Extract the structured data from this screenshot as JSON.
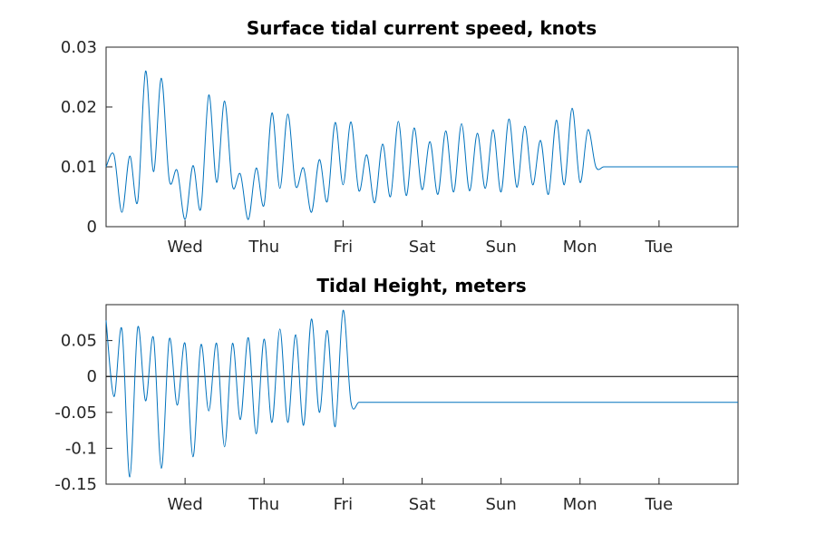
{
  "chart_data": [
    {
      "type": "line",
      "title": "Surface tidal current speed, knots",
      "xlabel": "",
      "ylabel": "",
      "x_unit": "days",
      "xlim": [
        0,
        8
      ],
      "ylim": [
        0,
        0.03
      ],
      "yticks": [
        0,
        0.01,
        0.02,
        0.03
      ],
      "ytick_labels": [
        "0",
        "0.01",
        "0.02",
        "0.03"
      ],
      "xticks": [
        1,
        2,
        3,
        4,
        5,
        6,
        7
      ],
      "xtick_labels": [
        "Wed",
        "Thu",
        "Fri",
        "Sat",
        "Sun",
        "Mon",
        "Tue"
      ],
      "zero_line": false,
      "grid": false,
      "series": [
        {
          "name": "",
          "color": "#0072bd",
          "x": [
            0,
            0.1,
            0.2,
            0.3,
            0.4,
            0.5,
            0.6,
            0.7,
            0.8,
            0.9,
            1.0,
            1.1,
            1.2,
            1.3,
            1.4,
            1.5,
            1.6,
            1.7,
            1.8,
            1.9,
            2.0,
            2.1,
            2.2,
            2.3,
            2.4,
            2.5,
            2.6,
            2.7,
            2.8,
            2.9,
            3.0,
            3.1,
            3.2,
            3.3,
            3.4,
            3.5,
            3.6,
            3.7,
            3.8,
            3.9,
            4.0,
            4.1,
            4.2,
            4.3,
            4.4,
            4.5,
            4.6,
            4.7,
            4.8,
            4.9,
            5.0,
            5.1,
            5.2,
            5.3,
            5.4,
            5.5,
            5.6,
            5.7,
            5.8,
            5.9,
            6.0,
            6.1,
            6.2,
            6.3,
            6.4,
            6.5,
            6.6,
            6.7,
            6.8,
            6.9,
            7.0,
            7.1,
            7.2,
            7.3,
            7.4,
            7.5,
            7.6,
            7.7,
            7.8,
            7.9,
            8.0
          ],
          "y": [
            0.01,
            0.012,
            0.0024,
            0.0118,
            0.0042,
            0.026,
            0.0092,
            0.0248,
            0.0078,
            0.0094,
            0.0012,
            0.0102,
            0.003,
            0.022,
            0.0074,
            0.021,
            0.0068,
            0.0088,
            0.0012,
            0.0098,
            0.0036,
            0.019,
            0.0064,
            0.0188,
            0.0068,
            0.0098,
            0.0024,
            0.0112,
            0.0042,
            0.0174,
            0.007,
            0.0175,
            0.006,
            0.012,
            0.004,
            0.0138,
            0.005,
            0.0176,
            0.0052,
            0.0165,
            0.0062,
            0.0142,
            0.0054,
            0.016,
            0.0058,
            0.0172,
            0.006,
            0.0156,
            0.0064,
            0.0162,
            0.0058,
            0.018,
            0.0066,
            0.0168,
            0.007,
            0.0144,
            0.0054,
            0.0178,
            0.007,
            0.0198,
            0.0074,
            0.0162,
            0.01,
            0.01,
            0.01,
            0.01,
            0.01,
            0.01,
            0.01,
            0.01,
            0.01,
            0.01,
            0.01,
            0.01,
            0.01,
            0.01,
            0.01,
            0.01,
            0.01,
            0.01,
            0.01
          ]
        }
      ]
    },
    {
      "type": "line",
      "title": "Tidal Height, meters",
      "xlabel": "",
      "ylabel": "",
      "x_unit": "days",
      "xlim": [
        0,
        8
      ],
      "ylim": [
        -0.15,
        0.1
      ],
      "yticks": [
        -0.15,
        -0.1,
        -0.05,
        0,
        0.05
      ],
      "ytick_labels": [
        "-0.15",
        "-0.1",
        "-0.05",
        "0",
        "0.05"
      ],
      "xticks": [
        1,
        2,
        3,
        4,
        5,
        6,
        7
      ],
      "xtick_labels": [
        "Wed",
        "Thu",
        "Fri",
        "Sat",
        "Sun",
        "Mon",
        "Tue"
      ],
      "zero_line": true,
      "grid": false,
      "series": [
        {
          "name": "",
          "color": "#0072bd",
          "x": [
            0,
            0.1,
            0.2,
            0.3,
            0.4,
            0.5,
            0.6,
            0.7,
            0.8,
            0.9,
            1.0,
            1.1,
            1.2,
            1.3,
            1.4,
            1.5,
            1.6,
            1.7,
            1.8,
            1.9,
            2.0,
            2.1,
            2.2,
            2.3,
            2.4,
            2.5,
            2.6,
            2.7,
            2.8,
            2.9,
            3.0,
            3.1,
            3.2,
            3.3,
            3.4,
            3.5,
            3.6,
            3.7,
            3.8,
            3.9,
            4.0,
            4.1,
            4.2,
            4.3,
            4.4,
            4.5,
            4.6,
            4.7,
            4.8,
            4.9,
            5.0,
            5.1,
            5.2,
            5.3,
            5.4,
            5.5,
            5.6,
            5.7,
            5.8,
            5.9,
            6.0,
            6.1,
            6.2,
            6.3,
            6.4,
            6.5,
            6.6,
            6.7,
            6.8,
            6.9,
            7.0,
            7.1,
            7.2,
            7.3,
            7.4,
            7.5,
            7.6,
            7.7,
            7.8,
            7.9,
            8.0
          ],
          "y": [
            0.078,
            -0.028,
            0.066,
            -0.14,
            0.068,
            -0.034,
            0.054,
            -0.128,
            0.052,
            -0.04,
            0.046,
            -0.112,
            0.044,
            -0.048,
            0.046,
            -0.098,
            0.046,
            -0.06,
            0.054,
            -0.08,
            0.052,
            -0.064,
            0.066,
            -0.064,
            0.058,
            -0.068,
            0.08,
            -0.05,
            0.064,
            -0.07,
            0.092,
            -0.036,
            -0.036,
            -0.036,
            -0.036,
            -0.036,
            -0.036,
            -0.036,
            -0.036,
            -0.036,
            -0.036,
            -0.036,
            -0.036,
            -0.036,
            -0.036,
            -0.036,
            -0.036,
            -0.036,
            -0.036,
            -0.036,
            -0.036,
            -0.036,
            -0.036,
            -0.036,
            -0.036,
            -0.036,
            -0.036,
            -0.036,
            -0.036,
            -0.036,
            -0.036,
            -0.036,
            -0.036,
            -0.036,
            -0.036,
            -0.036,
            -0.036,
            -0.036,
            -0.036,
            -0.036,
            -0.036,
            -0.036,
            -0.036,
            -0.036,
            -0.036,
            -0.036,
            -0.036,
            -0.036,
            -0.036,
            -0.036,
            -0.036
          ]
        }
      ]
    }
  ]
}
